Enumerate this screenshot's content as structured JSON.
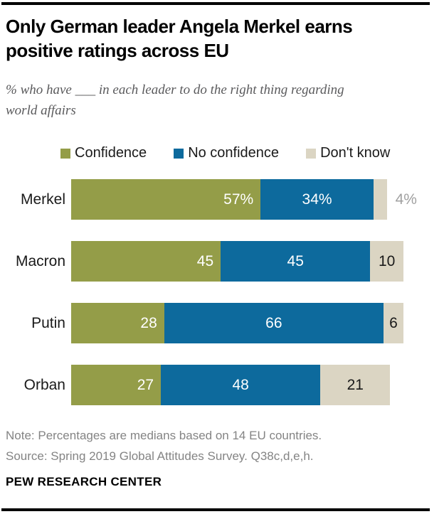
{
  "header": {
    "title": "Only German leader Angela Merkel earns positive ratings across EU",
    "subtitle": "% who have ___ in each leader to do the right thing regarding world affairs"
  },
  "chart_data": {
    "type": "bar",
    "stacked": true,
    "orientation": "horizontal",
    "title": "Only German leader Angela Merkel earns positive ratings across EU",
    "subtitle": "% who have ___ in each leader to do the right thing regarding world affairs",
    "x_max": 100,
    "grid": false,
    "legend_position": "top",
    "categories": [
      "Merkel",
      "Macron",
      "Putin",
      "Orban"
    ],
    "series": [
      {
        "name": "Confidence",
        "values": [
          57,
          45,
          28,
          27
        ]
      },
      {
        "name": "No confidence",
        "values": [
          34,
          45,
          66,
          48
        ]
      },
      {
        "name": "Don't know",
        "values": [
          4,
          10,
          6,
          21
        ]
      }
    ],
    "display_labels": [
      [
        "57%",
        "34%",
        "4%"
      ],
      [
        "45",
        "45",
        "10"
      ],
      [
        "28",
        "66",
        "6"
      ],
      [
        "27",
        "48",
        "21"
      ]
    ],
    "outside_labels": [
      [
        false,
        false,
        true
      ],
      [
        false,
        false,
        false
      ],
      [
        false,
        false,
        false
      ],
      [
        false,
        false,
        false
      ]
    ],
    "colors": {
      "Confidence": "#949d48",
      "No confidence": "#0d6a9d",
      "Don't know": "#dbd5c3"
    }
  },
  "footer": {
    "note": "Note: Percentages are medians based on 14 EU countries.",
    "source": "Source: Spring 2019 Global Attitudes Survey. Q38c,d,e,h.",
    "brand": "PEW RESEARCH CENTER"
  }
}
